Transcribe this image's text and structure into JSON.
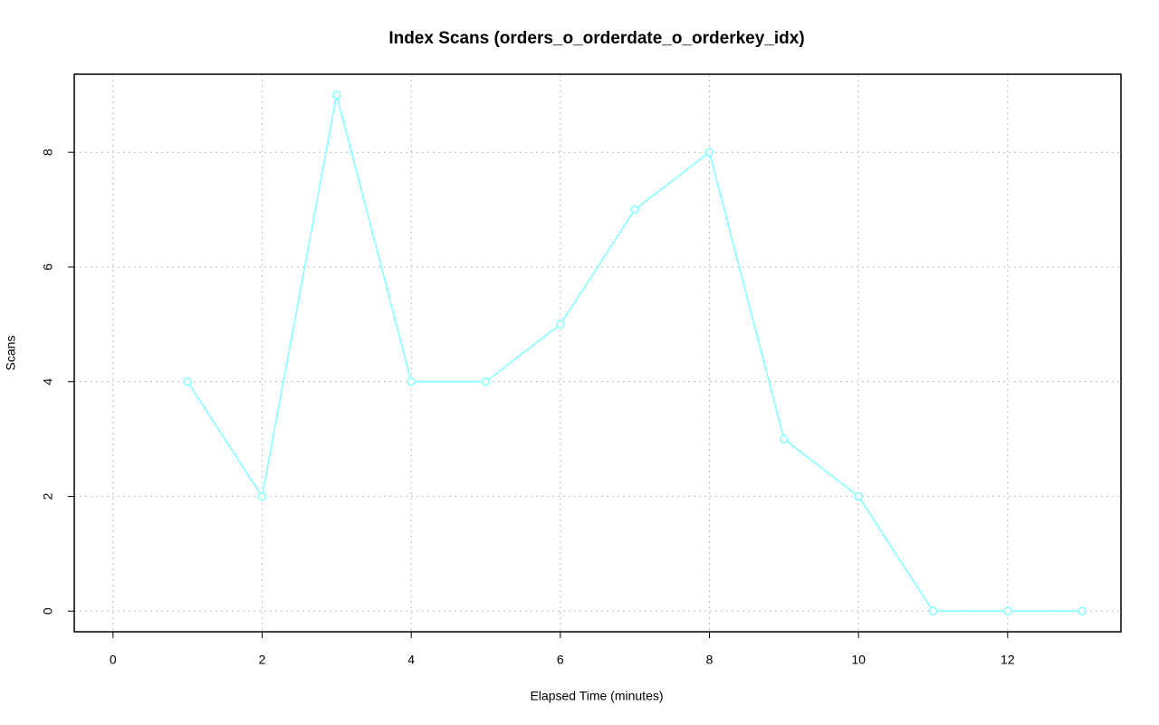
{
  "chart_data": {
    "type": "line",
    "title": "Index Scans (orders_o_orderdate_o_orderkey_idx)",
    "xlabel": "Elapsed Time (minutes)",
    "ylabel": "Scans",
    "x": [
      1,
      2,
      3,
      4,
      5,
      6,
      7,
      8,
      9,
      10,
      11,
      12,
      13
    ],
    "values": [
      4,
      2,
      9,
      4,
      4,
      5,
      7,
      8,
      3,
      2,
      0,
      0,
      0
    ],
    "color": "#7fffff",
    "xlim": [
      -0.52,
      13.52
    ],
    "xticks": [
      0,
      2,
      4,
      6,
      8,
      10,
      12
    ],
    "ylim": [
      -0.36,
      9.36
    ],
    "yticks": [
      0,
      2,
      4,
      6,
      8
    ],
    "grid": true
  }
}
